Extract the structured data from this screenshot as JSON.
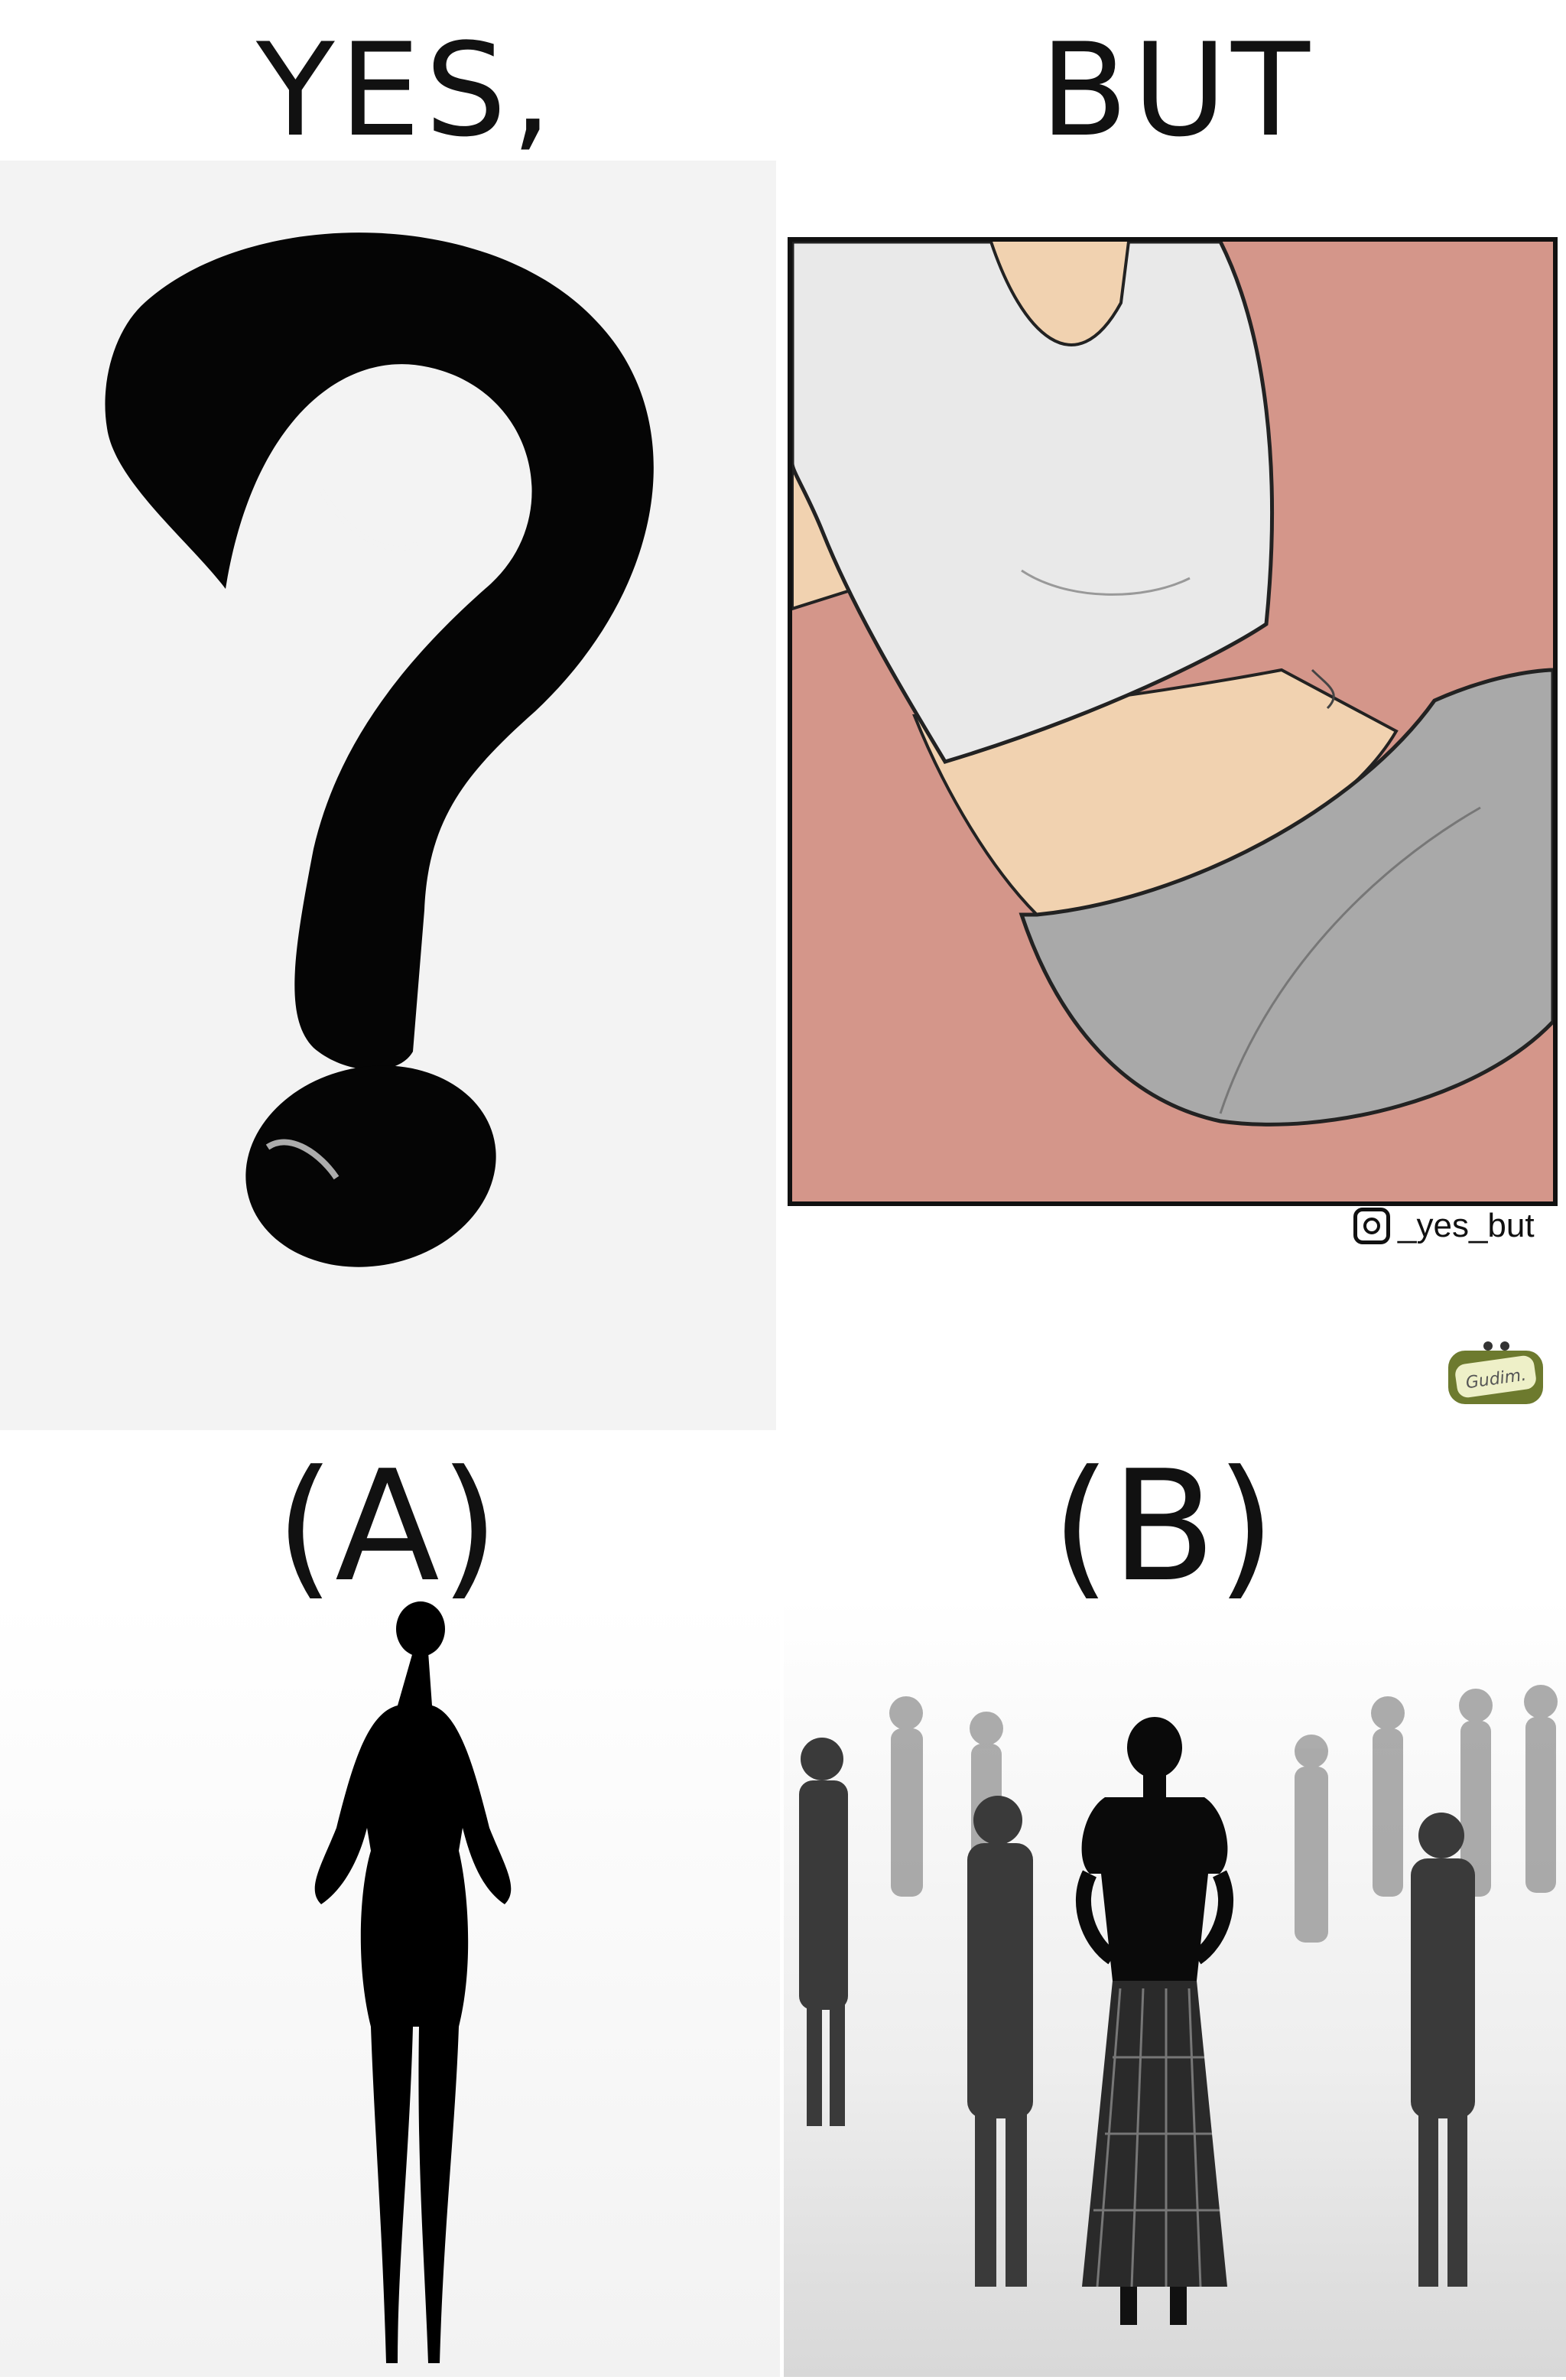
{
  "titles": {
    "yes": "YES,",
    "but": "BUT"
  },
  "watermark": {
    "handle": "_yes_but",
    "icon": "instagram-icon",
    "logo_text": "Gudim."
  },
  "labels": {
    "a": "(A)",
    "b": "(B)"
  },
  "colors": {
    "cartoon_bg": "#d4968a",
    "shirt": "#e9e9e9",
    "pants": "#a9a9a9",
    "skin": "#f1d2b0",
    "logo_green": "#6d7a2e"
  }
}
